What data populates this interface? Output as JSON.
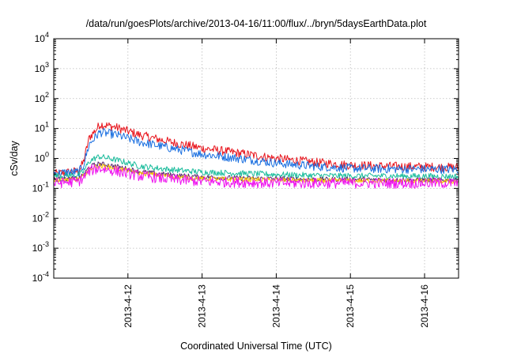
{
  "chart_data": {
    "type": "line",
    "title": "/data/run/goesPlots/archive/2013-04-16/11:00/flux/../bryn/5daysEarthData.plot",
    "xlabel": "Coordinated Universal Time (UTC)",
    "ylabel": "cSv/day",
    "yscale": "log",
    "ylim": [
      0.0001,
      10000
    ],
    "xlim": [
      "2013-04-11T00:00",
      "2013-04-16T11:00"
    ],
    "grid": true,
    "legend": "none",
    "y_ticks": [
      {
        "base": "10",
        "exp": "-4",
        "value": 0.0001
      },
      {
        "base": "10",
        "exp": "-3",
        "value": 0.001
      },
      {
        "base": "10",
        "exp": "-2",
        "value": 0.01
      },
      {
        "base": "10",
        "exp": "-1",
        "value": 0.1
      },
      {
        "base": "10",
        "exp": "0",
        "value": 1
      },
      {
        "base": "10",
        "exp": "1",
        "value": 10
      },
      {
        "base": "10",
        "exp": "2",
        "value": 100
      },
      {
        "base": "10",
        "exp": "3",
        "value": 1000
      },
      {
        "base": "10",
        "exp": "4",
        "value": 10000
      }
    ],
    "x_ticks": [
      {
        "label": "2013-4-12",
        "date": "2013-04-12T00:00"
      },
      {
        "label": "2013-4-13",
        "date": "2013-04-13T00:00"
      },
      {
        "label": "2013-4-14",
        "date": "2013-04-14T00:00"
      },
      {
        "label": "2013-4-15",
        "date": "2013-04-15T00:00"
      },
      {
        "label": "2013-4-16",
        "date": "2013-04-16T00:00"
      }
    ],
    "series": [
      {
        "color": "#e8141c",
        "noise": 0.15,
        "points": [
          [
            "2013-04-11T00:00",
            0.3
          ],
          [
            "2013-04-11T08:00",
            0.38
          ],
          [
            "2013-04-11T09:30",
            0.7
          ],
          [
            "2013-04-11T11:30",
            5.0
          ],
          [
            "2013-04-11T14:00",
            10.0
          ],
          [
            "2013-04-11T15:00",
            14.0
          ],
          [
            "2013-04-11T20:00",
            11.0
          ],
          [
            "2013-04-12T04:00",
            6.0
          ],
          [
            "2013-04-12T14:00",
            3.5
          ],
          [
            "2013-04-13T00:00",
            2.2
          ],
          [
            "2013-04-13T12:00",
            1.5
          ],
          [
            "2013-04-14T00:00",
            1.0
          ],
          [
            "2013-04-14T12:00",
            0.75
          ],
          [
            "2013-04-15T00:00",
            0.6
          ],
          [
            "2013-04-15T12:00",
            0.55
          ],
          [
            "2013-04-16T11:00",
            0.5
          ]
        ]
      },
      {
        "color": "#1a6fe0",
        "noise": 0.15,
        "points": [
          [
            "2013-04-11T00:00",
            0.32
          ],
          [
            "2013-04-11T08:00",
            0.35
          ],
          [
            "2013-04-11T09:30",
            0.55
          ],
          [
            "2013-04-11T11:30",
            3.0
          ],
          [
            "2013-04-11T14:00",
            6.0
          ],
          [
            "2013-04-11T15:00",
            7.5
          ],
          [
            "2013-04-11T20:00",
            6.2
          ],
          [
            "2013-04-12T04:00",
            3.5
          ],
          [
            "2013-04-12T14:00",
            2.2
          ],
          [
            "2013-04-13T00:00",
            1.4
          ],
          [
            "2013-04-13T12:00",
            1.0
          ],
          [
            "2013-04-14T00:00",
            0.7
          ],
          [
            "2013-04-14T12:00",
            0.55
          ],
          [
            "2013-04-15T00:00",
            0.47
          ],
          [
            "2013-04-15T12:00",
            0.45
          ],
          [
            "2013-04-16T11:00",
            0.43
          ]
        ]
      },
      {
        "color": "#1abc9c",
        "noise": 0.1,
        "points": [
          [
            "2013-04-11T00:00",
            0.26
          ],
          [
            "2013-04-11T08:00",
            0.28
          ],
          [
            "2013-04-11T09:30",
            0.35
          ],
          [
            "2013-04-11T11:30",
            0.8
          ],
          [
            "2013-04-11T14:00",
            1.1
          ],
          [
            "2013-04-11T15:00",
            1.15
          ],
          [
            "2013-04-11T20:00",
            0.9
          ],
          [
            "2013-04-12T04:00",
            0.55
          ],
          [
            "2013-04-12T14:00",
            0.42
          ],
          [
            "2013-04-13T00:00",
            0.35
          ],
          [
            "2013-04-13T12:00",
            0.32
          ],
          [
            "2013-04-14T00:00",
            0.29
          ],
          [
            "2013-04-14T12:00",
            0.27
          ],
          [
            "2013-04-15T00:00",
            0.26
          ],
          [
            "2013-04-15T12:00",
            0.26
          ],
          [
            "2013-04-16T11:00",
            0.25
          ]
        ]
      },
      {
        "color": "#5a2a6e",
        "noise": 0.08,
        "points": [
          [
            "2013-04-11T00:00",
            0.2
          ],
          [
            "2013-04-11T08:00",
            0.21
          ],
          [
            "2013-04-11T09:30",
            0.27
          ],
          [
            "2013-04-11T11:30",
            0.52
          ],
          [
            "2013-04-11T14:00",
            0.65
          ],
          [
            "2013-04-11T15:00",
            0.66
          ],
          [
            "2013-04-11T20:00",
            0.55
          ],
          [
            "2013-04-12T04:00",
            0.36
          ],
          [
            "2013-04-12T14:00",
            0.28
          ],
          [
            "2013-04-13T00:00",
            0.24
          ],
          [
            "2013-04-13T12:00",
            0.22
          ],
          [
            "2013-04-14T00:00",
            0.21
          ],
          [
            "2013-04-14T12:00",
            0.2
          ],
          [
            "2013-04-15T00:00",
            0.2
          ],
          [
            "2013-04-15T12:00",
            0.19
          ],
          [
            "2013-04-16T11:00",
            0.19
          ]
        ]
      },
      {
        "color": "#f5c400",
        "noise": 0.08,
        "points": [
          [
            "2013-04-11T00:00",
            0.19
          ],
          [
            "2013-04-11T08:00",
            0.2
          ],
          [
            "2013-04-11T09:30",
            0.25
          ],
          [
            "2013-04-11T11:30",
            0.45
          ],
          [
            "2013-04-11T14:00",
            0.55
          ],
          [
            "2013-04-11T15:00",
            0.56
          ],
          [
            "2013-04-11T20:00",
            0.48
          ],
          [
            "2013-04-12T04:00",
            0.32
          ],
          [
            "2013-04-12T14:00",
            0.25
          ],
          [
            "2013-04-13T00:00",
            0.21
          ],
          [
            "2013-04-13T12:00",
            0.2
          ],
          [
            "2013-04-14T00:00",
            0.19
          ],
          [
            "2013-04-14T12:00",
            0.18
          ],
          [
            "2013-04-15T00:00",
            0.18
          ],
          [
            "2013-04-15T12:00",
            0.18
          ],
          [
            "2013-04-16T11:00",
            0.17
          ]
        ]
      },
      {
        "color": "#ee11ee",
        "noise": 0.18,
        "points": [
          [
            "2013-04-11T00:00",
            0.15
          ],
          [
            "2013-04-11T08:00",
            0.17
          ],
          [
            "2013-04-11T09:30",
            0.22
          ],
          [
            "2013-04-11T11:30",
            0.38
          ],
          [
            "2013-04-11T14:00",
            0.45
          ],
          [
            "2013-04-11T15:00",
            0.46
          ],
          [
            "2013-04-11T20:00",
            0.38
          ],
          [
            "2013-04-12T04:00",
            0.26
          ],
          [
            "2013-04-12T14:00",
            0.2
          ],
          [
            "2013-04-13T00:00",
            0.17
          ],
          [
            "2013-04-13T12:00",
            0.16
          ],
          [
            "2013-04-14T00:00",
            0.15
          ],
          [
            "2013-04-14T12:00",
            0.15
          ],
          [
            "2013-04-15T00:00",
            0.15
          ],
          [
            "2013-04-15T12:00",
            0.15
          ],
          [
            "2013-04-16T11:00",
            0.15
          ]
        ]
      }
    ]
  }
}
